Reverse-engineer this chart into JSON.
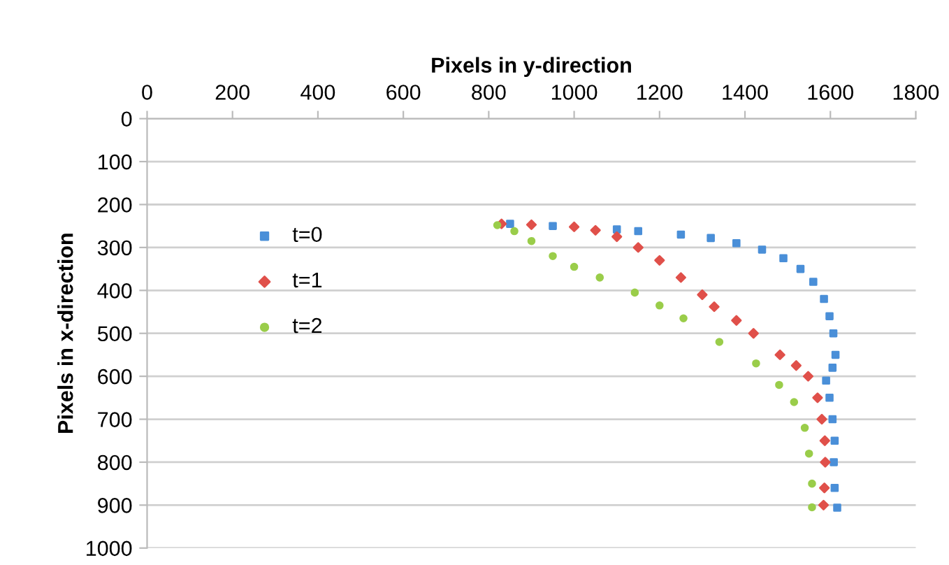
{
  "chart_data": {
    "type": "scatter",
    "xlabel": "Pixels in y-direction",
    "ylabel": "Pixels in x-direction",
    "xlim": [
      0,
      1800
    ],
    "xticks": [
      0,
      200,
      400,
      600,
      800,
      1000,
      1200,
      1400,
      1600,
      1800
    ],
    "ylim": [
      1000,
      0
    ],
    "yticks": [
      0,
      100,
      200,
      300,
      400,
      500,
      600,
      700,
      800,
      900,
      1000
    ],
    "grid": "y",
    "legend": "left",
    "series": [
      {
        "name": "t=0",
        "color": "#4a8fd8",
        "marker": "square",
        "x": [
          850,
          950,
          1100,
          1150,
          1250,
          1320,
          1380,
          1440,
          1490,
          1530,
          1560,
          1585,
          1598,
          1607,
          1612,
          1605,
          1590,
          1598,
          1605,
          1610,
          1608,
          1610,
          1616
        ],
        "values": [
          245,
          250,
          258,
          262,
          270,
          278,
          290,
          305,
          325,
          350,
          380,
          420,
          460,
          500,
          550,
          580,
          610,
          650,
          700,
          750,
          800,
          860,
          906
        ]
      },
      {
        "name": "t=1",
        "color": "#e0504a",
        "marker": "diamond",
        "x": [
          830,
          900,
          1000,
          1050,
          1100,
          1150,
          1200,
          1250,
          1300,
          1328,
          1380,
          1420,
          1482,
          1520,
          1548,
          1570,
          1580,
          1587,
          1588,
          1586,
          1584
        ],
        "values": [
          245,
          247,
          252,
          260,
          275,
          300,
          330,
          370,
          410,
          438,
          470,
          500,
          550,
          575,
          600,
          650,
          700,
          750,
          800,
          860,
          900
        ]
      },
      {
        "name": "t=2",
        "color": "#9acd4a",
        "marker": "circle",
        "x": [
          820,
          860,
          900,
          950,
          1000,
          1060,
          1142,
          1200,
          1256,
          1340,
          1426,
          1480,
          1515,
          1540,
          1550,
          1557,
          1557
        ],
        "values": [
          248,
          262,
          285,
          320,
          345,
          370,
          405,
          435,
          465,
          520,
          570,
          620,
          660,
          720,
          780,
          850,
          905
        ]
      }
    ]
  }
}
